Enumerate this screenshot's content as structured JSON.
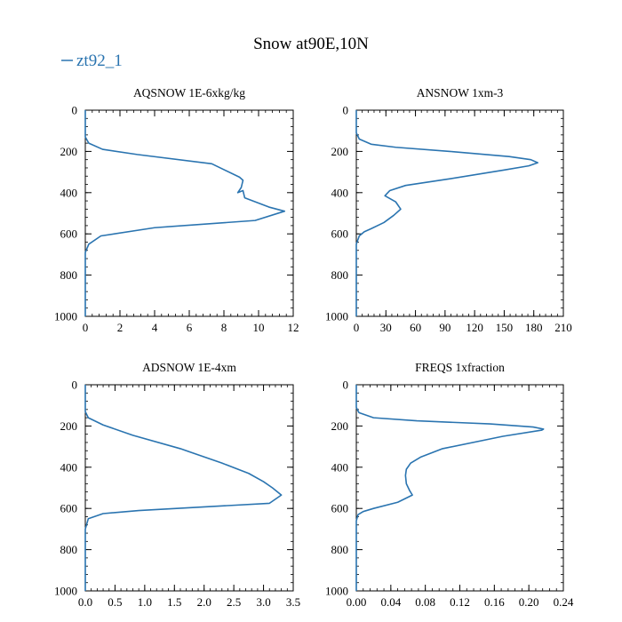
{
  "figure": {
    "title": "Snow at90E,10N",
    "legend_label": "zt92_1",
    "series_color": "#2a74b0"
  },
  "chart_data": [
    {
      "type": "line",
      "title": "AQSNOW  1E-6xkg/kg",
      "series_name": "zt92_1",
      "xlim": [
        0,
        12
      ],
      "xticks": [
        0,
        2,
        4,
        6,
        8,
        10,
        12
      ],
      "xtick_labels": [
        "0",
        "2",
        "4",
        "6",
        "8",
        "10",
        "12"
      ],
      "ylim": [
        0,
        1000
      ],
      "yticks": [
        0,
        200,
        400,
        600,
        800,
        1000
      ],
      "ytick_labels": [
        "0",
        "200",
        "400",
        "600",
        "800",
        "1000"
      ],
      "y_inverted": true,
      "x": [
        0,
        0,
        0.2,
        1,
        3,
        7.3,
        8.9,
        9.1,
        9.0,
        8.8,
        9.1,
        9.2,
        10.6,
        11.5,
        9.8,
        4.0,
        0.9,
        0.2,
        0,
        0,
        0
      ],
      "y": [
        0,
        130,
        160,
        190,
        215,
        260,
        325,
        340,
        375,
        400,
        390,
        425,
        470,
        490,
        535,
        570,
        610,
        650,
        690,
        800,
        1000
      ]
    },
    {
      "type": "line",
      "title": "ANSNOW  1xm-3",
      "series_name": "zt92_1",
      "xlim": [
        0,
        210
      ],
      "xticks": [
        0,
        30,
        60,
        90,
        120,
        150,
        180,
        210
      ],
      "xtick_labels": [
        "0",
        "30",
        "60",
        "90",
        "120",
        "150",
        "180",
        "210"
      ],
      "ylim": [
        0,
        1000
      ],
      "yticks": [
        0,
        200,
        400,
        600,
        800,
        1000
      ],
      "ytick_labels": [
        "0",
        "200",
        "400",
        "600",
        "800",
        "1000"
      ],
      "y_inverted": true,
      "x": [
        0,
        0,
        3,
        15,
        40,
        95,
        155,
        177,
        184,
        175,
        150,
        92,
        50,
        34,
        29,
        40,
        45,
        38,
        28,
        15,
        8,
        3,
        0,
        0,
        0
      ],
      "y": [
        0,
        110,
        140,
        165,
        180,
        200,
        225,
        240,
        255,
        270,
        290,
        335,
        365,
        390,
        415,
        445,
        480,
        510,
        545,
        575,
        590,
        610,
        650,
        800,
        1000
      ]
    },
    {
      "type": "line",
      "title": "ADSNOW  1E-4xm",
      "series_name": "zt92_1",
      "xlim": [
        0,
        3.5
      ],
      "xticks": [
        0,
        0.5,
        1,
        1.5,
        2,
        2.5,
        3,
        3.5
      ],
      "xtick_labels": [
        "0.0",
        "0.5",
        "1.0",
        "1.5",
        "2.0",
        "2.5",
        "3.0",
        "3.5"
      ],
      "ylim": [
        0,
        1000
      ],
      "yticks": [
        0,
        200,
        400,
        600,
        800,
        1000
      ],
      "ytick_labels": [
        "0",
        "200",
        "400",
        "600",
        "800",
        "1000"
      ],
      "y_inverted": true,
      "x": [
        0,
        0,
        0.05,
        0.3,
        0.8,
        1.6,
        2.3,
        2.75,
        3.0,
        3.15,
        3.3,
        3.1,
        0.9,
        0.3,
        0.05,
        0,
        0,
        0
      ],
      "y": [
        0,
        130,
        160,
        195,
        245,
        310,
        380,
        430,
        470,
        500,
        535,
        575,
        610,
        625,
        650,
        700,
        800,
        1000
      ]
    },
    {
      "type": "line",
      "title": "FREQS  1xfraction",
      "series_name": "zt92_1",
      "xlim": [
        0,
        0.24
      ],
      "xticks": [
        0,
        0.04,
        0.08,
        0.12,
        0.16,
        0.2,
        0.24
      ],
      "xtick_labels": [
        "0.00",
        "0.04",
        "0.08",
        "0.12",
        "0.16",
        "0.20",
        "0.24"
      ],
      "ylim": [
        0,
        1000
      ],
      "yticks": [
        0,
        200,
        400,
        600,
        800,
        1000
      ],
      "ytick_labels": [
        "0",
        "200",
        "400",
        "600",
        "800",
        "1000"
      ],
      "y_inverted": true,
      "x": [
        0,
        0,
        0.003,
        0.02,
        0.07,
        0.155,
        0.205,
        0.217,
        0.215,
        0.17,
        0.1,
        0.075,
        0.063,
        0.058,
        0.057,
        0.058,
        0.062,
        0.065,
        0.048,
        0.02,
        0.008,
        0.002,
        0,
        0,
        0
      ],
      "y": [
        0,
        110,
        135,
        160,
        175,
        190,
        205,
        215,
        220,
        250,
        310,
        350,
        380,
        410,
        440,
        480,
        515,
        535,
        570,
        600,
        615,
        630,
        660,
        800,
        1000
      ]
    }
  ]
}
